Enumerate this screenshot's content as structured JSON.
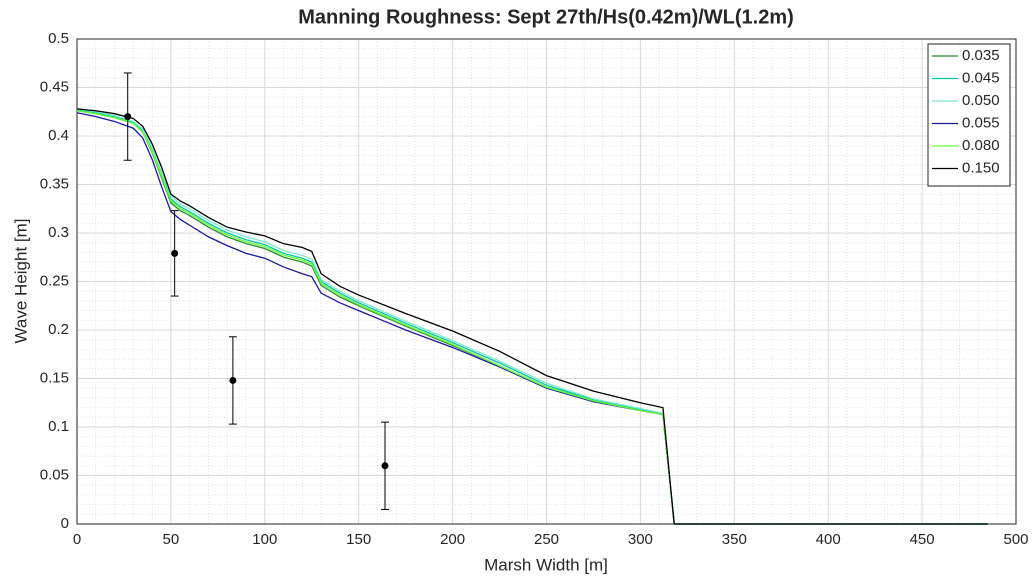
{
  "chart_data": {
    "type": "line",
    "title": "Manning Roughness: Sept 27th/Hs(0.42m)/WL(1.2m)",
    "x_label": "Marsh Width [m]",
    "y_label": "Wave Height [m]",
    "x": [
      0,
      10,
      20,
      30,
      35,
      40,
      45,
      50,
      55,
      60,
      70,
      80,
      90,
      100,
      110,
      120,
      125,
      130,
      140,
      150,
      175,
      200,
      225,
      250,
      275,
      300,
      312,
      318,
      485
    ],
    "series": [
      {
        "name": "0.035",
        "color": "#2e8b2e",
        "values": [
          0.426,
          0.423,
          0.419,
          0.413,
          0.404,
          0.383,
          0.357,
          0.331,
          0.323,
          0.318,
          0.306,
          0.296,
          0.289,
          0.284,
          0.275,
          0.27,
          0.266,
          0.246,
          0.234,
          0.225,
          0.204,
          0.184,
          0.163,
          0.141,
          0.127,
          0.117,
          0.113,
          0,
          0
        ]
      },
      {
        "name": "0.045",
        "color": "#00c8a0",
        "values": [
          0.427,
          0.424,
          0.42,
          0.414,
          0.405,
          0.385,
          0.36,
          0.335,
          0.327,
          0.322,
          0.31,
          0.3,
          0.293,
          0.288,
          0.279,
          0.274,
          0.27,
          0.25,
          0.238,
          0.228,
          0.207,
          0.187,
          0.166,
          0.143,
          0.128,
          0.118,
          0.114,
          0,
          0
        ]
      },
      {
        "name": "0.050",
        "color": "#7fe8d0",
        "values": [
          0.428,
          0.425,
          0.421,
          0.415,
          0.407,
          0.388,
          0.363,
          0.338,
          0.33,
          0.325,
          0.313,
          0.303,
          0.296,
          0.291,
          0.282,
          0.277,
          0.273,
          0.252,
          0.24,
          0.23,
          0.209,
          0.189,
          0.168,
          0.145,
          0.129,
          0.119,
          0.114,
          0,
          0
        ]
      },
      {
        "name": "0.055",
        "color": "#1a1aa0",
        "values": [
          0.424,
          0.42,
          0.415,
          0.408,
          0.398,
          0.376,
          0.348,
          0.322,
          0.314,
          0.308,
          0.296,
          0.287,
          0.279,
          0.274,
          0.265,
          0.258,
          0.255,
          0.238,
          0.228,
          0.22,
          0.2,
          0.182,
          0.162,
          0.14,
          0.126,
          0.117,
          0.113,
          0,
          0
        ]
      },
      {
        "name": "0.080",
        "color": "#66ff33",
        "values": [
          0.426,
          0.423,
          0.419,
          0.413,
          0.404,
          0.384,
          0.359,
          0.333,
          0.325,
          0.32,
          0.308,
          0.298,
          0.291,
          0.286,
          0.277,
          0.272,
          0.268,
          0.248,
          0.236,
          0.226,
          0.205,
          0.185,
          0.163,
          0.141,
          0.127,
          0.117,
          0.113,
          0,
          0
        ]
      },
      {
        "name": "0.150",
        "color": "#000000",
        "values": [
          0.428,
          0.426,
          0.423,
          0.418,
          0.41,
          0.392,
          0.368,
          0.34,
          0.333,
          0.328,
          0.316,
          0.306,
          0.301,
          0.297,
          0.289,
          0.285,
          0.281,
          0.258,
          0.245,
          0.236,
          0.217,
          0.199,
          0.178,
          0.153,
          0.137,
          0.125,
          0.12,
          0,
          0
        ]
      }
    ],
    "points": {
      "x": [
        27,
        52,
        83,
        164
      ],
      "values": [
        0.42,
        0.279,
        0.148,
        0.06
      ],
      "errors": [
        0.045,
        0.044,
        0.045,
        0.045
      ],
      "color": "#000000"
    },
    "xlim": [
      0,
      500
    ],
    "xticks": [
      0,
      50,
      100,
      150,
      200,
      250,
      300,
      350,
      400,
      450,
      500
    ],
    "ylim": [
      0,
      0.5
    ],
    "yticks": [
      0,
      0.05,
      0.1,
      0.15,
      0.2,
      0.25,
      0.3,
      0.35,
      0.4,
      0.45,
      0.5
    ],
    "grid": true,
    "minor_grid": true,
    "legend": "northeast"
  }
}
